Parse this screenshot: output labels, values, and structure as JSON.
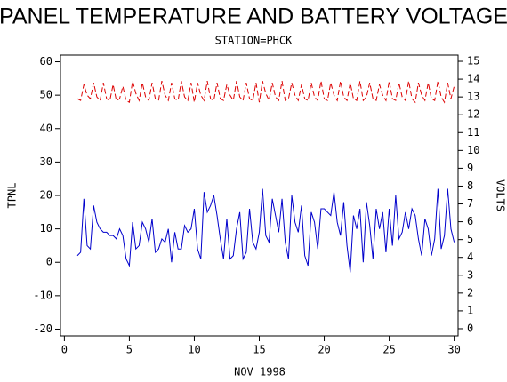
{
  "chart_data": {
    "type": "line",
    "title": "PANEL TEMPERATURE AND BATTERY VOLTAGE",
    "subtitle": "STATION=PHCK",
    "x_label": "NOV 1998",
    "y_label": "TPNL",
    "y2_label": "VOLTS",
    "x": [
      1,
      1.25,
      1.5,
      1.75,
      2,
      2.25,
      2.5,
      2.75,
      3,
      3.25,
      3.5,
      3.75,
      4,
      4.25,
      4.5,
      4.75,
      5,
      5.25,
      5.5,
      5.75,
      6,
      6.25,
      6.5,
      6.75,
      7,
      7.25,
      7.5,
      7.75,
      8,
      8.25,
      8.5,
      8.75,
      9,
      9.25,
      9.5,
      9.75,
      10,
      10.25,
      10.5,
      10.75,
      11,
      11.25,
      11.5,
      11.75,
      12,
      12.25,
      12.5,
      12.75,
      13,
      13.25,
      13.5,
      13.75,
      14,
      14.25,
      14.5,
      14.75,
      15,
      15.25,
      15.5,
      15.75,
      16,
      16.25,
      16.5,
      16.75,
      17,
      17.25,
      17.5,
      17.75,
      18,
      18.25,
      18.5,
      18.75,
      19,
      19.25,
      19.5,
      19.75,
      20,
      20.25,
      20.5,
      20.75,
      21,
      21.25,
      21.5,
      21.75,
      22,
      22.25,
      22.5,
      22.75,
      23,
      23.25,
      23.5,
      23.75,
      24,
      24.25,
      24.5,
      24.75,
      25,
      25.25,
      25.5,
      25.75,
      26,
      26.25,
      26.5,
      26.75,
      27,
      27.25,
      27.5,
      27.75,
      28,
      28.25,
      28.5,
      28.75,
      29,
      29.25,
      29.5,
      29.75,
      30
    ],
    "series": [
      {
        "name": "TPNL",
        "color": "#0000cc",
        "axis": "y",
        "dashed": false,
        "values": [
          2,
          3,
          19,
          5,
          4,
          17,
          12,
          10,
          9,
          9,
          8,
          8,
          7,
          10,
          8,
          1,
          -1,
          12,
          4,
          5,
          12,
          10,
          6,
          13,
          3,
          4,
          7,
          6,
          10,
          0,
          9,
          4,
          4,
          11,
          9,
          10,
          16,
          4,
          1,
          21,
          15,
          17,
          20,
          14,
          7,
          1,
          13,
          1,
          2,
          10,
          15,
          1,
          3,
          16,
          6,
          4,
          9,
          22,
          8,
          6,
          19,
          14,
          9,
          19,
          6,
          1,
          20,
          12,
          9,
          17,
          2,
          -1,
          15,
          12,
          4,
          16,
          16,
          15,
          14,
          21,
          12,
          8,
          18,
          5,
          -3,
          14,
          10,
          16,
          0,
          18,
          11,
          1,
          16,
          10,
          15,
          3,
          16,
          5,
          20,
          7,
          9,
          15,
          10,
          16,
          14,
          7,
          2,
          13,
          10,
          2,
          7,
          22,
          4,
          8,
          22,
          10,
          6
        ]
      },
      {
        "name": "VOLTS",
        "color": "#dd0000",
        "axis": "y2",
        "dashed": true,
        "values": [
          12.9,
          12.8,
          13.7,
          13.1,
          12.9,
          13.8,
          13.0,
          12.8,
          13.8,
          12.9,
          12.8,
          13.7,
          12.8,
          12.9,
          13.6,
          12.8,
          12.7,
          13.9,
          13.2,
          12.8,
          13.8,
          13.0,
          12.8,
          13.8,
          12.9,
          12.8,
          13.9,
          13.1,
          12.8,
          13.8,
          12.9,
          12.8,
          13.9,
          13.0,
          12.8,
          13.8,
          12.7,
          13.8,
          13.1,
          12.8,
          13.9,
          12.9,
          12.8,
          13.8,
          12.9,
          12.8,
          13.7,
          13.1,
          12.8,
          13.9,
          13.0,
          12.8,
          13.8,
          12.9,
          12.8,
          13.8,
          12.7,
          13.9,
          13.2,
          12.8,
          13.8,
          13.0,
          12.8,
          13.9,
          12.8,
          12.9,
          13.8,
          13.1,
          12.8,
          13.7,
          12.9,
          12.8,
          13.8,
          13.0,
          12.8,
          13.9,
          12.9,
          12.8,
          13.8,
          13.1,
          12.8,
          13.9,
          13.0,
          12.8,
          13.8,
          12.9,
          12.8,
          13.9,
          12.8,
          13.0,
          13.8,
          12.9,
          12.8,
          13.7,
          13.1,
          12.8,
          13.9,
          12.9,
          12.8,
          13.8,
          13.0,
          12.8,
          13.9,
          12.9,
          12.7,
          13.8,
          13.1,
          12.8,
          13.8,
          12.9,
          12.8,
          13.9,
          13.0,
          12.7,
          13.8,
          12.9,
          13.6
        ]
      }
    ],
    "xlim": [
      -0.3,
      30.3
    ],
    "xticks": [
      0,
      5,
      10,
      15,
      20,
      25,
      30
    ],
    "ylim": [
      -22,
      62
    ],
    "yticks": [
      -20,
      -10,
      0,
      10,
      20,
      30,
      40,
      50,
      60
    ],
    "y2lim": [
      -0.4,
      15.35
    ],
    "y2ticks": [
      0,
      1,
      2,
      3,
      4,
      5,
      6,
      7,
      8,
      9,
      10,
      11,
      12,
      13,
      14,
      15
    ]
  }
}
